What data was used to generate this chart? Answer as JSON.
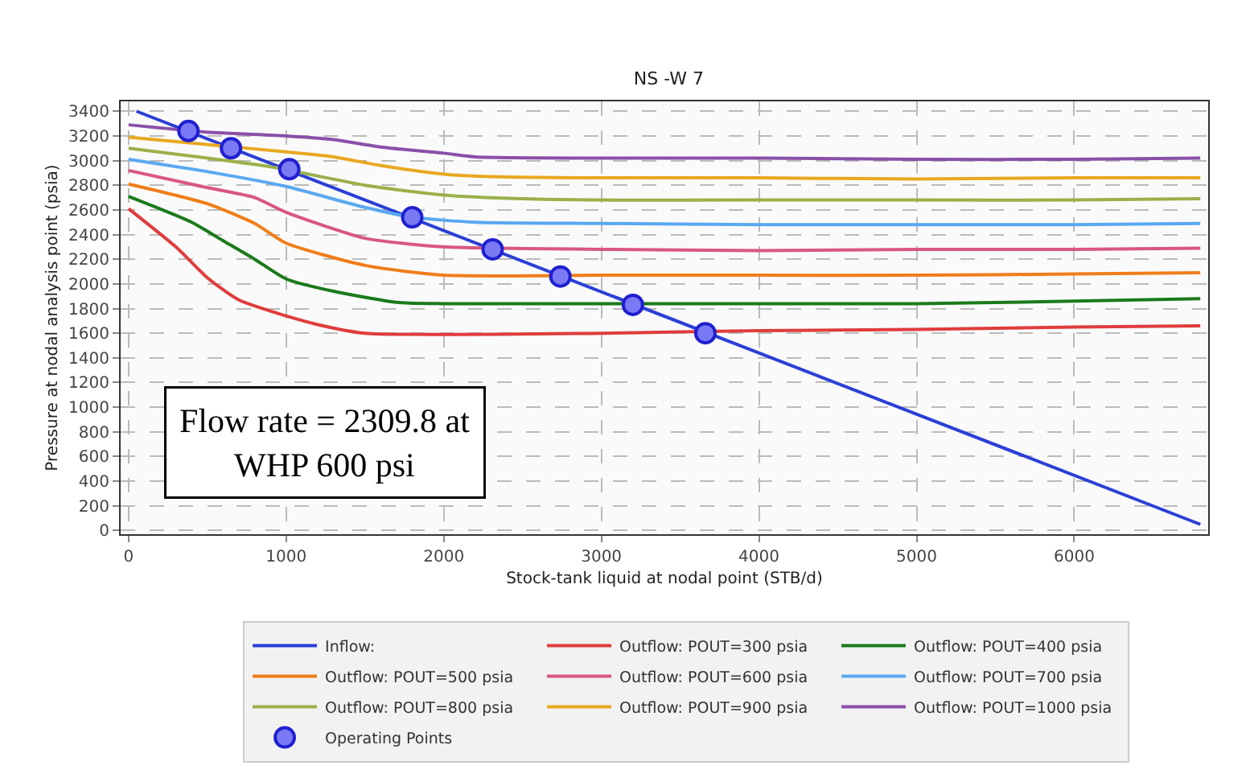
{
  "chart_data": {
    "type": "line",
    "title": "NS -W 7",
    "xlabel": "Stock-tank liquid at nodal point (STB/d)",
    "ylabel": "Pressure at nodal analysis point (psia)",
    "xlim": [
      -50,
      6850
    ],
    "xticks": [
      0,
      1000,
      2000,
      3000,
      4000,
      5000,
      6000
    ],
    "ylim": [
      -30,
      3480
    ],
    "yticks": [
      0,
      200,
      400,
      600,
      800,
      1000,
      1200,
      1400,
      1600,
      1800,
      2000,
      2200,
      2400,
      2600,
      2800,
      3000,
      3200,
      3400
    ],
    "grid": true,
    "legend": "bottom",
    "line_style": "solid",
    "annotations": [
      "Flow rate = 2309.8 at\nWHP 600 psi"
    ],
    "series": [
      {
        "name": "Inflow:",
        "color": "#2b3fd6",
        "x": [
          50,
          6800
        ],
        "values": [
          3400,
          50
        ]
      },
      {
        "name": "Outflow: POUT=300 psia",
        "color": "#e03c3c",
        "x": [
          0,
          300,
          500,
          700,
          1000,
          1200,
          1500,
          3000,
          3500,
          4000,
          5000,
          6000,
          6800
        ],
        "values": [
          2610,
          2300,
          2050,
          1870,
          1740,
          1670,
          1600,
          1600,
          1610,
          1620,
          1630,
          1650,
          1660
        ]
      },
      {
        "name": "Outflow: POUT=400 psia",
        "color": "#1a7a1a",
        "x": [
          0,
          400,
          600,
          800,
          1000,
          1300,
          1700,
          2000,
          3000,
          4000,
          5000,
          6000,
          6800
        ],
        "values": [
          2710,
          2500,
          2350,
          2200,
          2040,
          1940,
          1850,
          1840,
          1840,
          1840,
          1840,
          1860,
          1880
        ]
      },
      {
        "name": "Outflow: POUT=500 psia",
        "color": "#f07d1a",
        "x": [
          0,
          500,
          800,
          1000,
          1500,
          2000,
          3000,
          4000,
          5000,
          6000,
          6800
        ],
        "values": [
          2810,
          2650,
          2490,
          2330,
          2150,
          2070,
          2070,
          2070,
          2070,
          2080,
          2090
        ]
      },
      {
        "name": "Outflow: POUT=600 psia",
        "color": "#d9577f",
        "x": [
          0,
          500,
          800,
          1000,
          1500,
          2000,
          3000,
          4000,
          5000,
          6000,
          6800
        ],
        "values": [
          2920,
          2780,
          2700,
          2580,
          2370,
          2300,
          2280,
          2270,
          2280,
          2280,
          2290
        ]
      },
      {
        "name": "Outflow: POUT=700 psia",
        "color": "#5aa8f0",
        "x": [
          0,
          500,
          1000,
          1500,
          1800,
          2200,
          3000,
          4000,
          5000,
          6000,
          6800
        ],
        "values": [
          3010,
          2910,
          2790,
          2620,
          2540,
          2500,
          2490,
          2480,
          2480,
          2480,
          2490
        ]
      },
      {
        "name": "Outflow: POUT=800 psia",
        "color": "#9ab04a",
        "x": [
          0,
          500,
          900,
          1500,
          2000,
          2500,
          3000,
          4000,
          5000,
          6000,
          6800
        ],
        "values": [
          3100,
          3020,
          2950,
          2800,
          2720,
          2690,
          2680,
          2680,
          2680,
          2680,
          2690
        ]
      },
      {
        "name": "Outflow: POUT=900 psia",
        "color": "#e8a820",
        "x": [
          0,
          500,
          1000,
          1300,
          1600,
          2000,
          2300,
          3000,
          4000,
          5000,
          6000,
          6800
        ],
        "values": [
          3190,
          3130,
          3070,
          3030,
          2960,
          2890,
          2870,
          2860,
          2860,
          2850,
          2860,
          2860
        ]
      },
      {
        "name": "Outflow: POUT=1000 psia",
        "color": "#8a50a8",
        "x": [
          0,
          500,
          1000,
          1300,
          1600,
          2000,
          2200,
          3000,
          4000,
          5000,
          6000,
          6800
        ],
        "values": [
          3290,
          3230,
          3200,
          3170,
          3110,
          3060,
          3030,
          3020,
          3020,
          3010,
          3010,
          3020
        ]
      },
      {
        "name": "Operating Points",
        "type": "scatter",
        "marker": "circle",
        "color": "#7a7af5",
        "x": [
          380,
          650,
          1020,
          1800,
          2310,
          2740,
          3200,
          3660
        ],
        "values": [
          3240,
          3100,
          2930,
          2540,
          2280,
          2060,
          1830,
          1600
        ]
      }
    ]
  }
}
